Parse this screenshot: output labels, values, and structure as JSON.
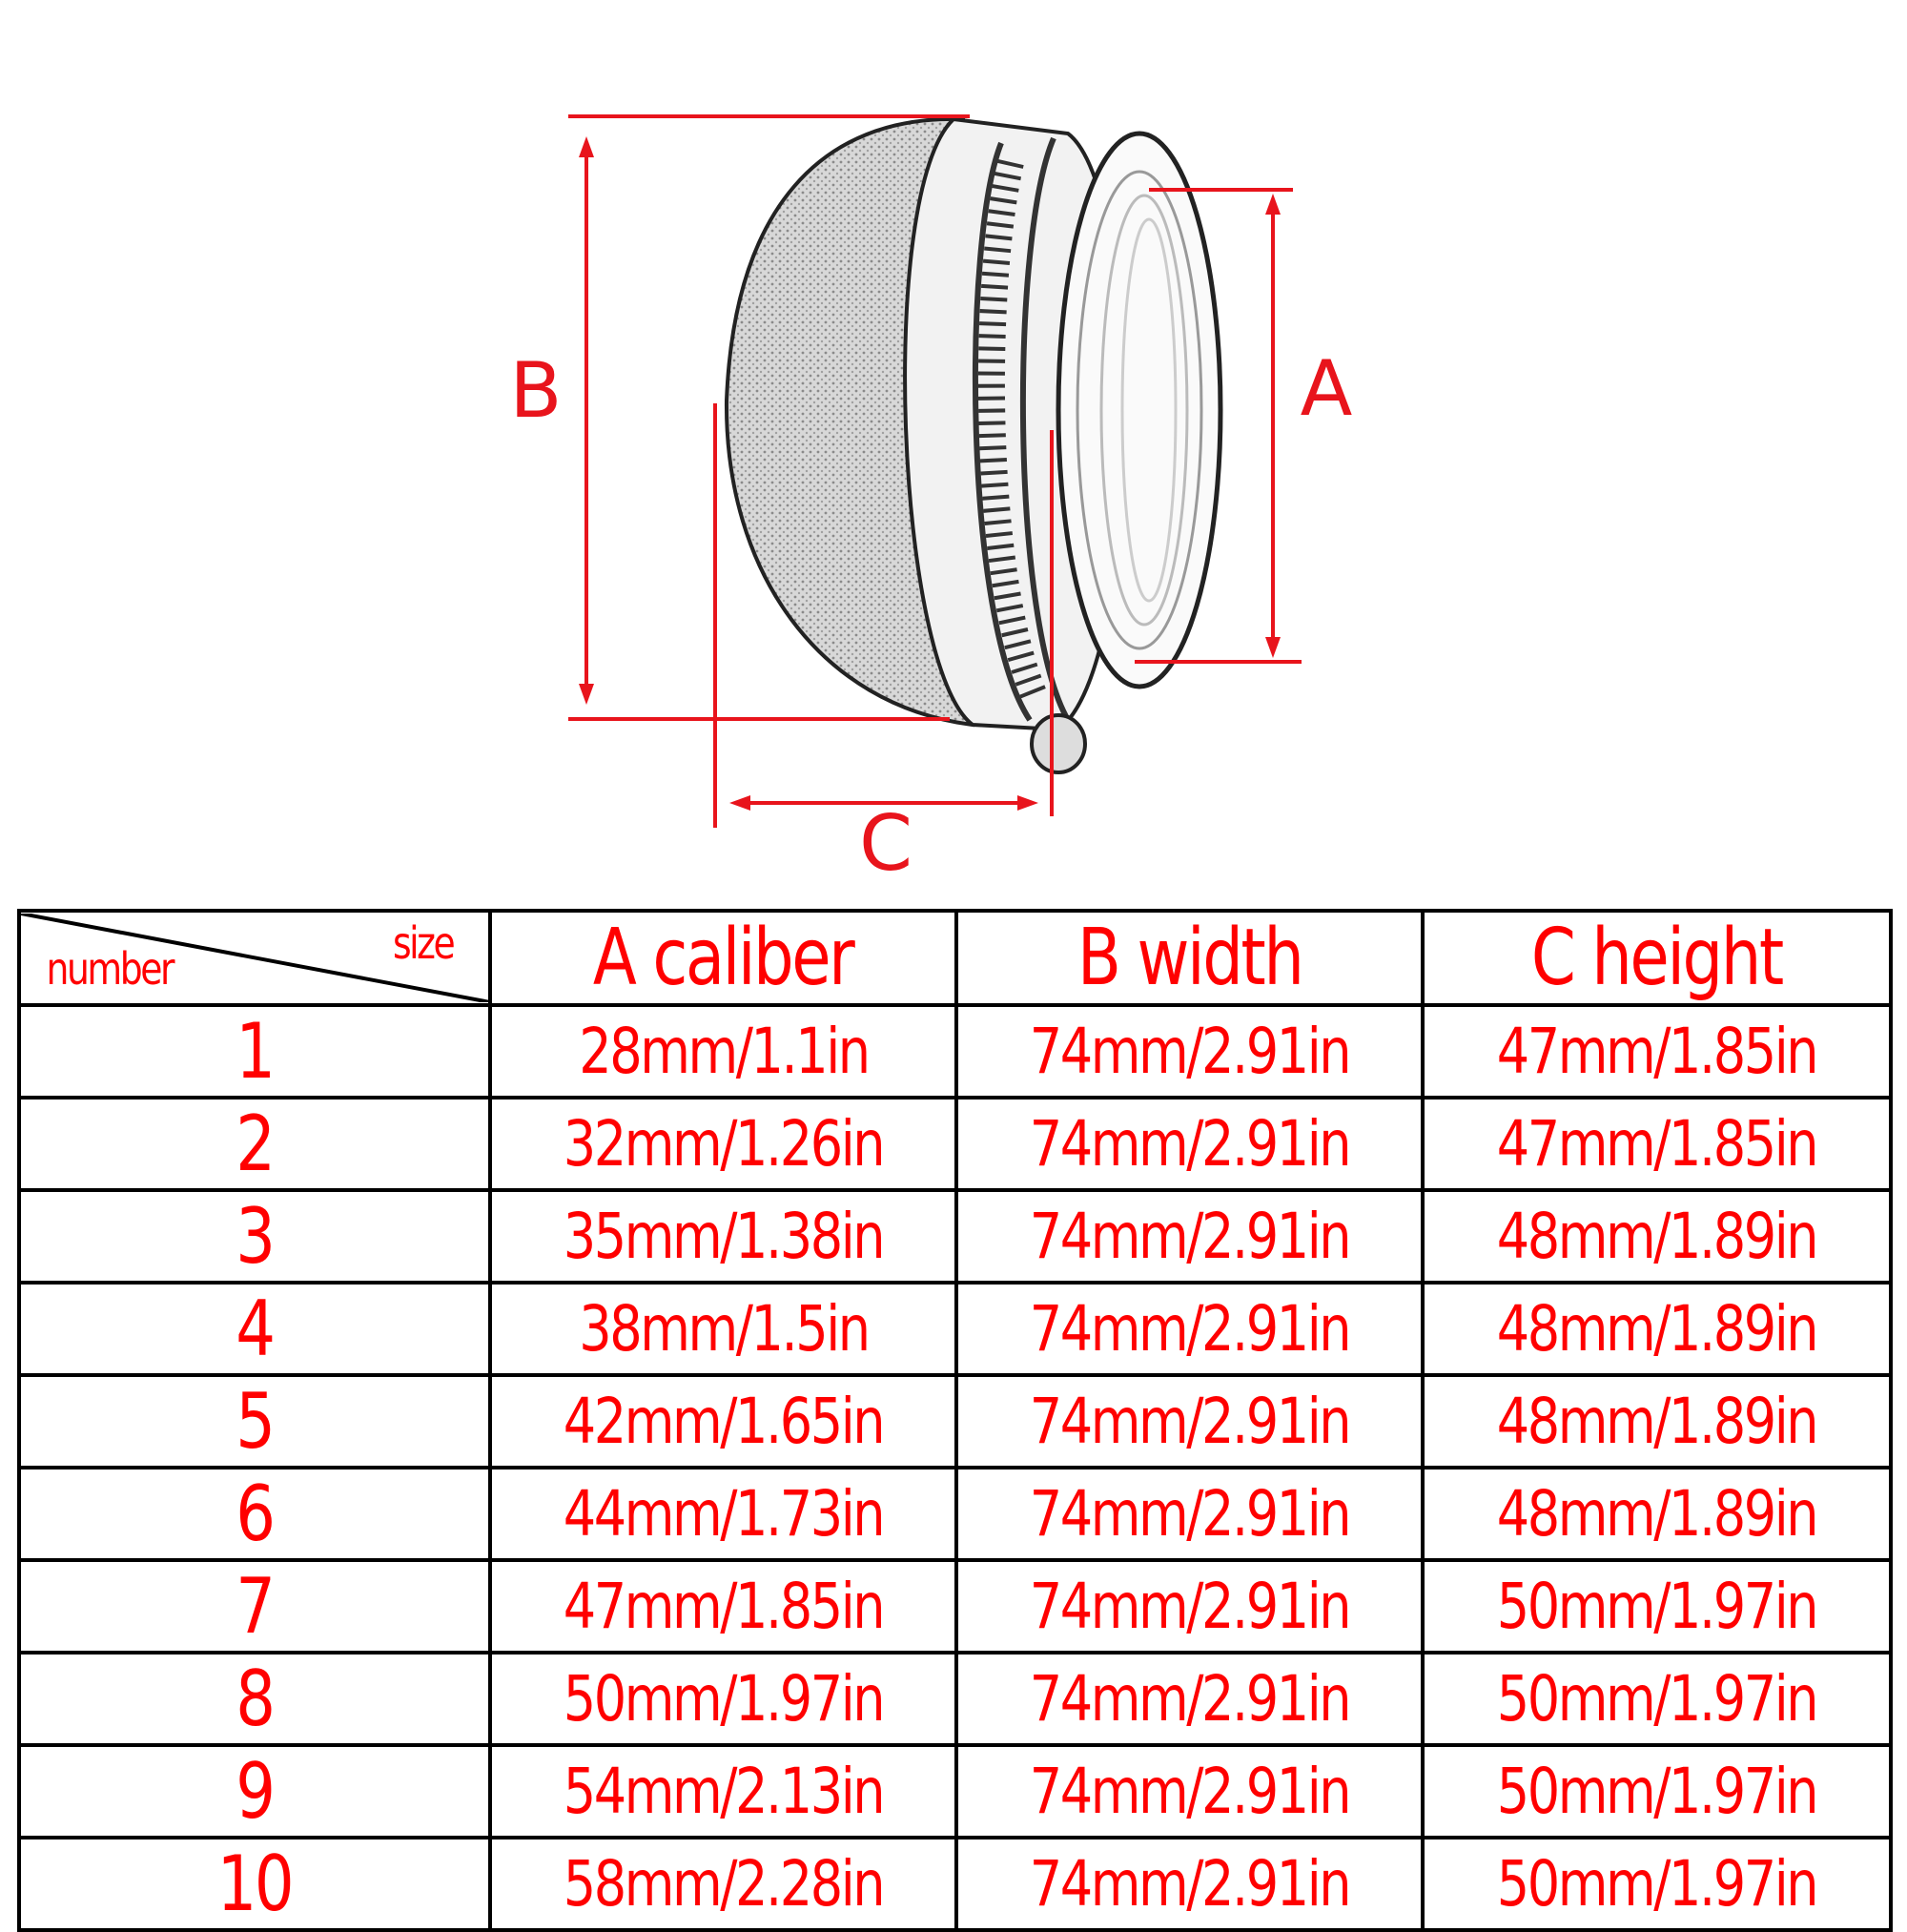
{
  "diagram": {
    "labels": {
      "a": "A",
      "b": "B",
      "c": "C"
    },
    "dimension_color": "#e8141c"
  },
  "table": {
    "corner": {
      "top_right": "size",
      "bottom_left": "number"
    },
    "headers": [
      "A caliber",
      "B width",
      "C height"
    ],
    "rows": [
      {
        "number": "1",
        "a": "28mm/1.1in",
        "b": "74mm/2.91in",
        "c": "47mm/1.85in"
      },
      {
        "number": "2",
        "a": "32mm/1.26in",
        "b": "74mm/2.91in",
        "c": "47mm/1.85in"
      },
      {
        "number": "3",
        "a": "35mm/1.38in",
        "b": "74mm/2.91in",
        "c": "48mm/1.89in"
      },
      {
        "number": "4",
        "a": "38mm/1.5in",
        "b": "74mm/2.91in",
        "c": "48mm/1.89in"
      },
      {
        "number": "5",
        "a": "42mm/1.65in",
        "b": "74mm/2.91in",
        "c": "48mm/1.89in"
      },
      {
        "number": "6",
        "a": "44mm/1.73in",
        "b": "74mm/2.91in",
        "c": "48mm/1.89in"
      },
      {
        "number": "7",
        "a": "47mm/1.85in",
        "b": "74mm/2.91in",
        "c": "50mm/1.97in"
      },
      {
        "number": "8",
        "a": "50mm/1.97in",
        "b": "74mm/2.91in",
        "c": "50mm/1.97in"
      },
      {
        "number": "9",
        "a": "54mm/2.13in",
        "b": "74mm/2.91in",
        "c": "50mm/1.97in"
      },
      {
        "number": "10",
        "a": "58mm/2.28in",
        "b": "74mm/2.91in",
        "c": "50mm/1.97in"
      }
    ],
    "text_color": "#ff0000"
  }
}
